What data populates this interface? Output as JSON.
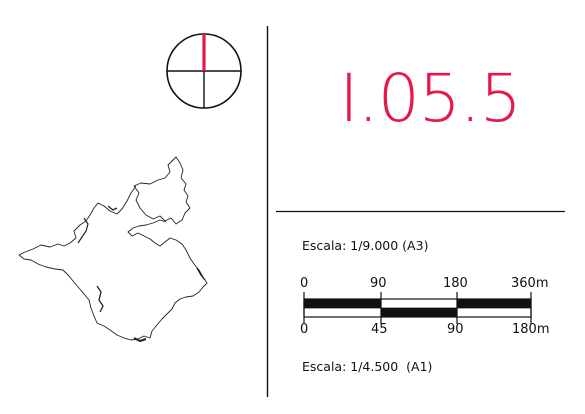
{
  "sheet": {
    "code": "I.05.5",
    "accent_color": "#e8174a"
  },
  "north_arrow": {
    "icon": "north-arrow-icon"
  },
  "location_map": {
    "icon": "municipality-outline-icon"
  },
  "scale_bar": {
    "scale_a3": "Escala: 1/9.000 (A3)",
    "scale_a1": "Escala: 1/4.500  (A1)",
    "top_ticks": [
      "0",
      "90",
      "180",
      "360m"
    ],
    "bottom_ticks": [
      "0",
      "45",
      "90",
      "180m"
    ]
  }
}
